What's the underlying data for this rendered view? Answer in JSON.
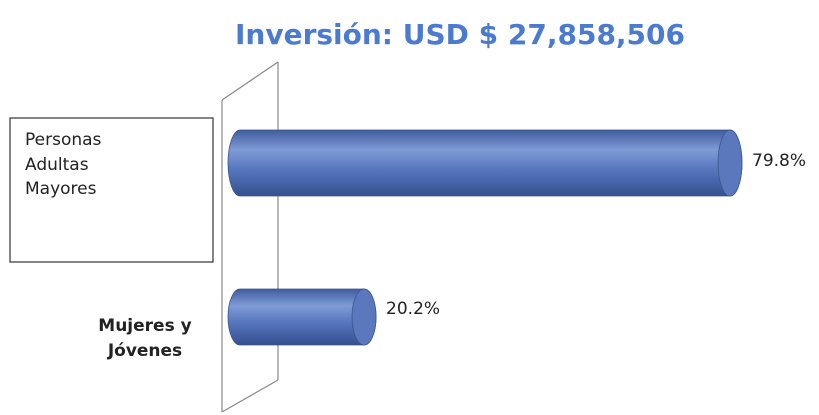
{
  "chart_data": {
    "type": "bar",
    "title": "Inversión: USD $ 27,858,506",
    "categories": [
      "Personas Adultas Mayores",
      "Mujeres y Jóvenes"
    ],
    "values": [
      79.8,
      20.2
    ],
    "value_labels": [
      "79.8%",
      "20.2%"
    ],
    "color": "#4f6fb5"
  }
}
